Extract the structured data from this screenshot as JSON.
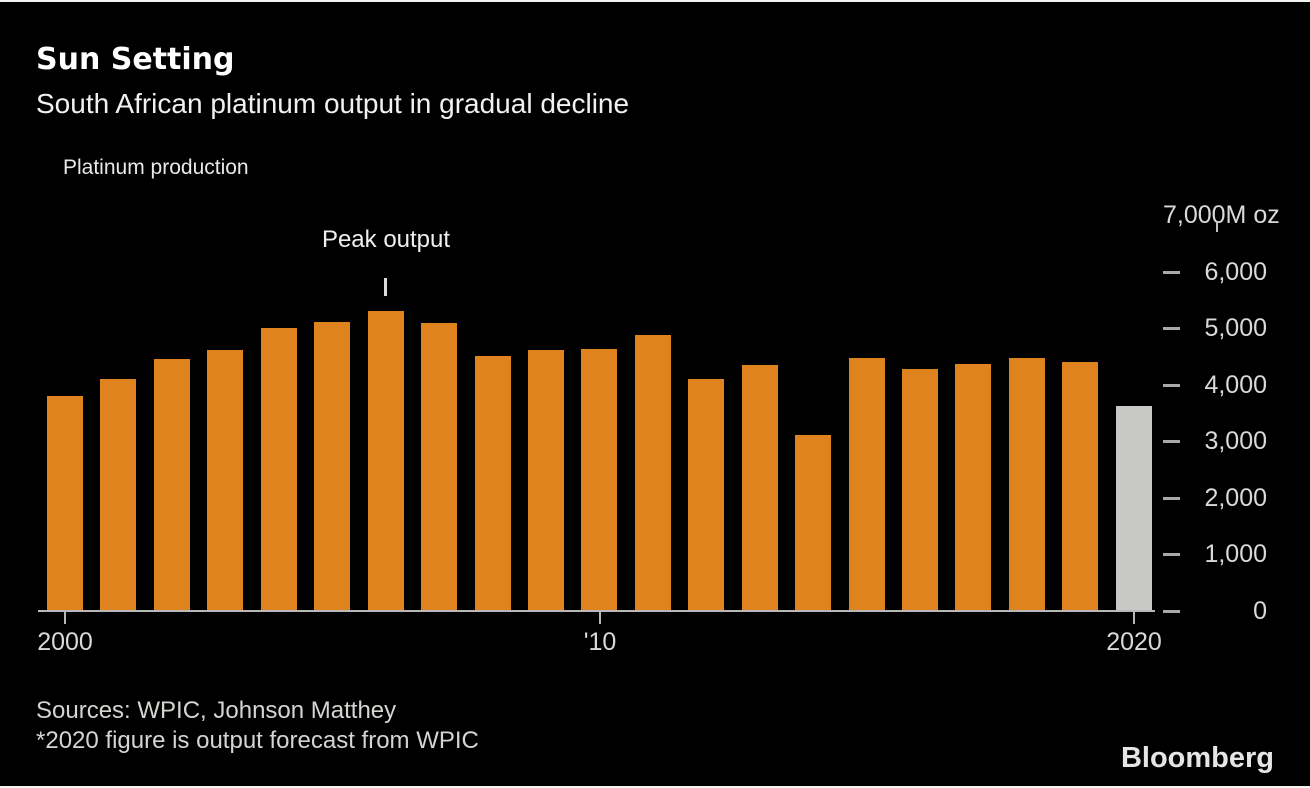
{
  "header": {
    "title": "Sun Setting",
    "subtitle": "South African platinum output in gradual decline"
  },
  "legend": {
    "label": "Platinum production",
    "swatch_icon": "orange-square-icon"
  },
  "annotation": {
    "text": "Peak output",
    "bar_index": 6
  },
  "footer": {
    "sources": "Sources: WPIC, Johnson Matthey",
    "footnote": "*2020 figure is output forecast from WPIC",
    "brand": "Bloomberg"
  },
  "colors": {
    "background": "#000000",
    "bar": "#de831e",
    "forecast_bar": "#c8c8c6",
    "axis": "#b8b8b8",
    "title_text": "#ffffff",
    "tick_text": "#d9d9d6"
  },
  "chart_data": {
    "type": "bar",
    "title": "Sun Setting",
    "subtitle": "South African platinum output in gradual decline",
    "series_name": "Platinum production",
    "unit": "M oz",
    "categories": [
      "2000",
      "2001",
      "2002",
      "2003",
      "2004",
      "2005",
      "2006",
      "2007",
      "2008",
      "2009",
      "2010",
      "2011",
      "2012",
      "2013",
      "2014",
      "2015",
      "2016",
      "2017",
      "2018",
      "2019",
      "2020"
    ],
    "values": [
      3800,
      4100,
      4450,
      4620,
      5000,
      5115,
      5300,
      5090,
      4510,
      4620,
      4630,
      4870,
      4100,
      4340,
      3110,
      4480,
      4275,
      4365,
      4470,
      4410,
      3630
    ],
    "forecast_index": 20,
    "annotation": {
      "text": "Peak output",
      "category": "2006"
    },
    "ylim": [
      0,
      7000
    ],
    "y_ticks": [
      {
        "value": 0,
        "label": "0"
      },
      {
        "value": 1000,
        "label": "1,000"
      },
      {
        "value": 2000,
        "label": "2,000"
      },
      {
        "value": 3000,
        "label": "3,000"
      },
      {
        "value": 4000,
        "label": "4,000"
      },
      {
        "value": 5000,
        "label": "5,000"
      },
      {
        "value": 6000,
        "label": "6,000"
      },
      {
        "value": 7000,
        "label": "7,000",
        "unit": "M oz"
      }
    ],
    "x_ticks": [
      {
        "index": 0,
        "label": "2000"
      },
      {
        "index": 10,
        "label": "'10"
      },
      {
        "index": 20,
        "label": "2020"
      }
    ],
    "grid": false,
    "legend_position": "top-left",
    "y_axis_position": "right"
  }
}
